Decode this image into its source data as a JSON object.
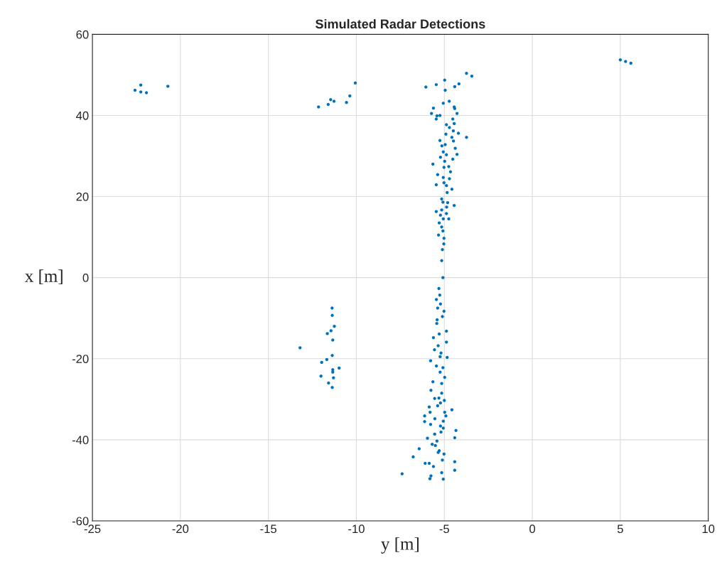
{
  "chart_data": {
    "type": "scatter",
    "title": "Simulated Radar Detections",
    "xlabel": "y [m]",
    "ylabel": "x [m]",
    "xlim": [
      -25,
      10
    ],
    "xticks": [
      -25,
      -20,
      -15,
      -10,
      -5,
      0,
      5,
      10
    ],
    "ylim": [
      -60,
      60
    ],
    "yticks": [
      -60,
      -40,
      -20,
      0,
      20,
      40,
      60
    ],
    "grid": true,
    "marker": "circle",
    "series": [
      {
        "color": "#0072bd",
        "x": [
          -22.58,
          -22.25,
          -22.25,
          -21.93,
          -20.71,
          -12.15,
          -11.6,
          -11.46,
          -11.27,
          -10.56,
          -10.37,
          -10.06,
          5.0,
          5.3,
          5.6,
          -3.74,
          -3.44,
          -4.98,
          -6.05,
          -5.46,
          -4.41,
          -4.17,
          -4.95,
          -5.06,
          -4.72,
          -5.62,
          -4.44,
          -4.41,
          -5.73,
          -4.28,
          -5.42,
          -5.25,
          -5.46,
          -4.52,
          -4.88,
          -4.44,
          -4.71,
          -4.49,
          -4.91,
          -4.2,
          -3.74,
          -4.57,
          -4.48,
          -5.25,
          -5.14,
          -4.95,
          -4.38,
          -4.28,
          -5.06,
          -4.88,
          -5.22,
          -4.52,
          -5.65,
          -4.98,
          -5.02,
          -4.75,
          -4.65,
          -5.38,
          -5.06,
          -4.71,
          -5.46,
          -5.02,
          -4.88,
          -4.57,
          -4.84,
          -5.15,
          -5.08,
          -4.81,
          -4.44,
          -5.46,
          -4.87,
          -5.15,
          -4.88,
          -5.22,
          -4.75,
          -5.06,
          -5.29,
          -5.15,
          -5.08,
          -5.33,
          -5.02,
          -5.03,
          -5.11,
          -5.15,
          -5.08,
          -5.31,
          -5.26,
          -5.45,
          -5.22,
          -5.38,
          -5.02,
          -5.11,
          -5.41,
          -5.43,
          -4.88,
          -5.29,
          -5.62,
          -4.88,
          -5.35,
          -5.56,
          -5.19,
          -4.84,
          -5.24,
          -5.78,
          -5.45,
          -5.08,
          -5.24,
          -4.98,
          -5.65,
          -5.15,
          -5.76,
          -5.15,
          -5.55,
          -5.31,
          -5.0,
          -5.22,
          -5.38,
          -5.86,
          -4.57,
          -5.81,
          -4.98,
          -4.91,
          -6.12,
          -5.54,
          -5.06,
          -6.12,
          -5.78,
          -5.22,
          -5.06,
          -4.34,
          -5.19,
          -5.55,
          -4.41,
          -5.96,
          -5.42,
          -5.69,
          -5.51,
          -6.43,
          -5.29,
          -5.02,
          -6.77,
          -5.35,
          -5.11,
          -4.41,
          -6.09,
          -5.86,
          -5.62,
          -4.41,
          -5.15,
          -5.76,
          -5.82,
          -5.06,
          -7.4,
          -11.38,
          -11.37,
          -11.25,
          -11.44,
          -11.65,
          -11.34,
          -13.2,
          -11.37,
          -11.68,
          -11.97,
          -10.98,
          -11.34,
          -11.34,
          -12.01,
          -11.3,
          -11.58,
          -11.37
        ],
        "values": [
          46.2,
          47.5,
          45.8,
          45.6,
          47.2,
          42.1,
          42.7,
          43.9,
          43.5,
          43.2,
          44.8,
          48.0,
          53.7,
          53.3,
          52.9,
          50.4,
          49.7,
          48.7,
          47.0,
          47.6,
          47.1,
          47.8,
          46.2,
          43.0,
          43.5,
          41.8,
          42.1,
          41.7,
          40.5,
          40.5,
          39.9,
          40.0,
          39.1,
          39.1,
          37.7,
          38.0,
          37.0,
          36.2,
          35.4,
          35.6,
          34.6,
          34.6,
          33.7,
          33.8,
          32.5,
          32.8,
          31.9,
          30.4,
          31.0,
          30.3,
          29.7,
          29.2,
          28.0,
          28.7,
          27.2,
          27.4,
          26.1,
          25.4,
          24.7,
          24.4,
          22.9,
          23.4,
          22.7,
          21.8,
          21.0,
          19.4,
          18.6,
          18.5,
          17.8,
          16.3,
          17.4,
          16.7,
          15.8,
          15.4,
          14.5,
          14.5,
          13.5,
          12.5,
          11.5,
          10.5,
          9.7,
          8.3,
          6.9,
          4.2,
          0.0,
          -2.7,
          -4.3,
          -5.4,
          -6.5,
          -7.5,
          -8.3,
          -9.6,
          -10.4,
          -11.3,
          -13.2,
          -13.9,
          -14.8,
          -15.9,
          -16.8,
          -17.8,
          -18.6,
          -19.7,
          -19.5,
          -20.5,
          -21.8,
          -22.2,
          -23.3,
          -24.6,
          -25.7,
          -26.1,
          -27.8,
          -28.5,
          -29.8,
          -29.7,
          -30.3,
          -30.9,
          -31.6,
          -31.9,
          -32.6,
          -33.2,
          -33.2,
          -34.1,
          -34.1,
          -34.8,
          -35.4,
          -35.5,
          -36.2,
          -36.6,
          -37.1,
          -37.7,
          -38.1,
          -38.6,
          -39.5,
          -39.6,
          -40.3,
          -41.1,
          -41.4,
          -42.2,
          -42.7,
          -43.5,
          -44.2,
          -43.1,
          -45.0,
          -45.4,
          -45.8,
          -45.8,
          -46.6,
          -47.5,
          -48.1,
          -48.9,
          -49.6,
          -49.7,
          -48.4,
          -7.5,
          -9.3,
          -12.0,
          -13.1,
          -13.8,
          -15.4,
          -17.3,
          -19.2,
          -20.2,
          -20.9,
          -22.3,
          -22.7,
          -23.3,
          -24.3,
          -24.7,
          -26.0,
          -27.1
        ]
      }
    ]
  }
}
